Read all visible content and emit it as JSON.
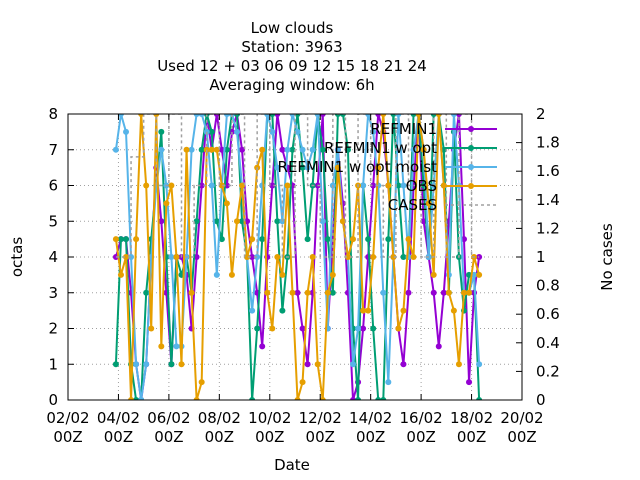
{
  "chart_data": {
    "type": "line",
    "title_lines": [
      "Low clouds",
      "Station:      3963",
      "Used  12 + 03 06 09 12 15 18 21 24",
      "Averaging window:  6h"
    ],
    "xlabel": "Date",
    "ylabel": "octas",
    "y2label": "No cases",
    "x_ticks": [
      "02/02 00Z",
      "04/02 00Z",
      "06/02 00Z",
      "08/02 00Z",
      "10/02 00Z",
      "12/02 00Z",
      "14/02 00Z",
      "16/02 00Z",
      "18/02 00Z",
      "20/02 00Z"
    ],
    "x_tick_days": [
      2,
      4,
      6,
      8,
      10,
      12,
      14,
      16,
      18,
      20
    ],
    "xlim": [
      2,
      20
    ],
    "ylim": [
      0,
      8
    ],
    "y_ticks": [
      0,
      1,
      2,
      3,
      4,
      5,
      6,
      7,
      8
    ],
    "y2lim": [
      0,
      2
    ],
    "y2_ticks": [
      "0",
      "0.2",
      "0.4",
      "0.6",
      "0.8",
      "1",
      "1.2",
      "1.4",
      "1.6",
      "1.8",
      "2"
    ],
    "grid": true,
    "legend_position": "top-right",
    "series": [
      {
        "name": "REFMIN1",
        "color": "#9400d3",
        "marker": "circle",
        "x": [
          3.9,
          4.1,
          4.3,
          4.5,
          4.7,
          4.9,
          5.1,
          5.3,
          5.5,
          5.7,
          5.9,
          6.1,
          6.3,
          6.5,
          6.7,
          6.9,
          7.1,
          7.3,
          7.5,
          7.7,
          7.9,
          8.1,
          8.3,
          8.5,
          8.7,
          8.9,
          9.1,
          9.3,
          9.5,
          9.7,
          9.9,
          10.1,
          10.3,
          10.5,
          10.7,
          10.9,
          11.1,
          11.3,
          11.5,
          11.7,
          11.9,
          12.1,
          12.3,
          12.5,
          12.7,
          12.9,
          13.1,
          13.3,
          13.5,
          13.7,
          13.9,
          14.1,
          14.3,
          14.5,
          14.7,
          14.9,
          15.1,
          15.3,
          15.5,
          15.7,
          15.9,
          16.1,
          16.3,
          16.5,
          16.7,
          16.9,
          17.1,
          17.3,
          17.5,
          17.7,
          17.9,
          18.1,
          18.3
        ],
        "y": [
          4,
          4.5,
          4.5,
          3,
          1,
          0,
          1,
          4,
          6.5,
          5,
          3,
          1,
          4,
          4,
          3.5,
          2,
          4,
          6,
          8,
          7,
          8,
          7,
          6,
          7.5,
          8,
          7,
          5,
          4,
          3,
          1.5,
          4,
          6,
          8,
          7,
          6.5,
          6,
          3,
          2,
          1,
          3,
          6,
          8,
          2,
          4.5,
          7,
          5.5,
          3,
          0,
          0.5,
          2,
          4,
          6,
          8,
          7.5,
          6,
          4,
          2,
          1,
          3,
          6,
          8,
          5,
          4,
          3,
          1.5,
          3,
          5,
          7,
          8,
          4.5,
          0.5,
          3,
          4
        ]
      },
      {
        "name": "REFMIN1 w opt",
        "color": "#009e73",
        "marker": "circle",
        "x": [
          3.9,
          4.1,
          4.3,
          4.5,
          4.7,
          4.9,
          5.1,
          5.3,
          5.5,
          5.7,
          5.9,
          6.1,
          6.3,
          6.5,
          6.7,
          6.9,
          7.1,
          7.3,
          7.5,
          7.7,
          7.9,
          8.1,
          8.3,
          8.5,
          8.7,
          8.9,
          9.1,
          9.3,
          9.5,
          9.7,
          9.9,
          10.1,
          10.3,
          10.5,
          10.7,
          10.9,
          11.1,
          11.3,
          11.5,
          11.7,
          11.9,
          12.1,
          12.3,
          12.5,
          12.7,
          12.9,
          13.1,
          13.3,
          13.5,
          13.7,
          13.9,
          14.1,
          14.3,
          14.5,
          14.7,
          14.9,
          15.1,
          15.3,
          15.5,
          15.7,
          15.9,
          16.1,
          16.3,
          16.5,
          16.7,
          16.9,
          17.1,
          17.3,
          17.5,
          17.7,
          17.9,
          18.1,
          18.3
        ],
        "y": [
          1,
          4.5,
          4.5,
          1,
          0,
          0,
          3,
          4.5,
          6,
          7.5,
          4,
          1,
          4,
          3.5,
          4,
          3,
          5,
          7,
          8,
          7.5,
          5,
          4.5,
          7,
          8,
          8,
          5,
          4,
          0,
          2,
          4.5,
          8,
          8,
          5,
          2.5,
          4,
          7,
          8,
          6.5,
          4.5,
          6,
          8,
          7,
          4.5,
          3,
          8,
          8,
          7,
          2,
          0,
          6,
          4.5,
          2,
          0,
          0,
          4.5,
          8,
          6,
          4,
          4,
          8,
          8,
          6,
          4,
          8,
          8,
          7,
          3,
          7.5,
          4,
          2.5,
          3.5,
          3.5,
          0
        ]
      },
      {
        "name": "REFMIN1 w opt moist",
        "color": "#56b4e9",
        "marker": "circle",
        "x": [
          3.9,
          4.1,
          4.3,
          4.5,
          4.7,
          4.9,
          5.1,
          5.3,
          5.5,
          5.7,
          5.9,
          6.1,
          6.3,
          6.5,
          6.7,
          6.9,
          7.1,
          7.3,
          7.5,
          7.7,
          7.9,
          8.1,
          8.3,
          8.5,
          8.7,
          8.9,
          9.1,
          9.3,
          9.5,
          9.7,
          9.9,
          10.1,
          10.3,
          10.5,
          10.7,
          10.9,
          11.1,
          11.3,
          11.5,
          11.7,
          11.9,
          12.1,
          12.3,
          12.5,
          12.7,
          12.9,
          13.1,
          13.3,
          13.5,
          13.7,
          13.9,
          14.1,
          14.3,
          14.5,
          14.7,
          14.9,
          15.1,
          15.3,
          15.5,
          15.7,
          15.9,
          16.1,
          16.3,
          16.5,
          16.7,
          16.9,
          17.1,
          17.3,
          17.5,
          17.7,
          17.9,
          18.1,
          18.3
        ],
        "y": [
          7,
          8,
          7.5,
          4,
          1,
          0,
          1,
          4,
          6,
          7,
          6,
          4,
          1.5,
          1.5,
          4,
          7,
          8,
          8,
          7.5,
          6,
          3.5,
          6,
          8,
          8,
          7.5,
          6,
          4,
          2.5,
          4,
          6,
          8,
          7.5,
          6.5,
          5,
          7,
          8,
          7.5,
          7,
          6.5,
          7,
          8,
          5,
          2,
          6,
          7,
          5,
          4,
          1,
          2,
          6,
          8,
          7.5,
          6,
          3,
          0.5,
          4,
          8,
          6,
          4,
          7,
          8,
          7,
          4,
          6,
          8,
          6,
          3.5,
          8,
          6,
          3,
          3,
          3.5,
          1
        ]
      },
      {
        "name": "OBS",
        "color": "#e69f00",
        "marker": "circle",
        "x": [
          3.9,
          4.1,
          4.3,
          4.5,
          4.7,
          4.9,
          5.1,
          5.3,
          5.5,
          5.7,
          5.9,
          6.1,
          6.3,
          6.5,
          6.7,
          6.9,
          7.1,
          7.3,
          7.5,
          7.7,
          7.9,
          8.1,
          8.3,
          8.5,
          8.7,
          8.9,
          9.1,
          9.3,
          9.5,
          9.7,
          9.9,
          10.1,
          10.3,
          10.5,
          10.7,
          10.9,
          11.1,
          11.3,
          11.5,
          11.7,
          11.9,
          12.1,
          12.3,
          12.5,
          12.7,
          12.9,
          13.1,
          13.3,
          13.5,
          13.7,
          13.9,
          14.1,
          14.3,
          14.5,
          14.7,
          14.9,
          15.1,
          15.3,
          15.5,
          15.7,
          15.9,
          16.1,
          16.3,
          16.5,
          16.7,
          16.9,
          17.1,
          17.3,
          17.5,
          17.7,
          17.9,
          18.1,
          18.3
        ],
        "y": [
          4.5,
          3.5,
          4,
          0,
          4.5,
          8,
          6,
          2,
          8,
          1.5,
          5.5,
          6,
          4,
          1,
          7,
          3,
          0,
          0.5,
          7,
          7,
          7,
          6,
          5.5,
          3.5,
          5,
          6,
          4,
          4.5,
          6.5,
          7,
          3,
          2,
          4,
          3.5,
          6,
          3,
          0,
          0.5,
          3,
          4,
          1,
          0,
          3,
          3.5,
          6.5,
          5,
          4,
          4.5,
          6,
          2.5,
          2.5,
          4,
          6.5,
          8,
          6,
          4,
          2,
          2.5,
          4.5,
          4,
          8,
          7,
          5.5,
          3.5,
          8,
          6,
          3,
          2.5,
          1,
          3,
          3,
          4,
          3.5
        ]
      },
      {
        "name": "CASES",
        "color": "#a0a0a0",
        "marker": "none",
        "x": [
          3.9,
          4.2,
          4.5,
          5.0,
          5.5,
          6.0,
          6.5,
          7.0,
          7.5,
          8.0,
          8.5,
          9.0,
          9.5,
          10.0,
          10.5,
          11.0,
          11.5,
          12.0,
          12.5,
          13.0,
          13.5,
          14.0,
          14.5,
          15.0,
          15.5,
          16.0,
          16.5,
          17.0,
          17.5,
          18.0,
          18.3
        ],
        "y": [
          1,
          1,
          1.7,
          2,
          1.5,
          2,
          1,
          1.5,
          2,
          1.5,
          2,
          1,
          2,
          1.5,
          1,
          2,
          1.5,
          1,
          2,
          1,
          2,
          1.5,
          1,
          2,
          1.5,
          1,
          2,
          1,
          2,
          1,
          1
        ]
      }
    ]
  }
}
